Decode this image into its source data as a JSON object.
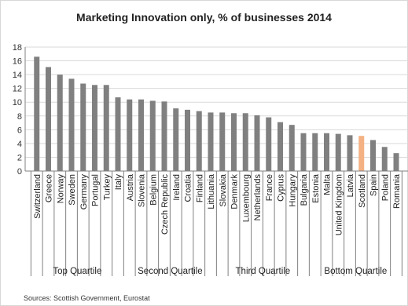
{
  "chart_data": {
    "type": "bar",
    "title": "Marketing Innovation only, % of businesses 2014",
    "xlabel": "",
    "ylabel": "",
    "ylim": [
      0,
      18
    ],
    "yticks": [
      0,
      2,
      4,
      6,
      8,
      10,
      12,
      14,
      16,
      18
    ],
    "grid": true,
    "colors": {
      "bar": "#808080",
      "highlight": "#f4b183",
      "grid": "#d9d9d9",
      "axis": "#808080"
    },
    "highlight_category": "Scotland",
    "categories": [
      "Switzerland",
      "Greece",
      "Norway",
      "Sweden",
      "Germany",
      "Portugal",
      "Turkey",
      "Italy",
      "Austria",
      "Slovenia",
      "Belgium",
      "Czech Republic",
      "Ireland",
      "Croatia",
      "Finland",
      "Lithuania",
      "Slovakia",
      "Denmark",
      "Luxembourg",
      "Netherlands",
      "France",
      "Cyprus",
      "Hungary",
      "Bulgaria",
      "Estonia",
      "Malta",
      "United Kingdom",
      "Latvia",
      "Scotland",
      "Spain",
      "Poland",
      "Romania"
    ],
    "values": [
      16.6,
      15.1,
      14.0,
      13.4,
      12.7,
      12.5,
      12.5,
      10.7,
      10.4,
      10.4,
      10.2,
      10.1,
      9.1,
      8.9,
      8.7,
      8.5,
      8.5,
      8.4,
      8.4,
      8.1,
      7.8,
      7.1,
      6.7,
      5.5,
      5.5,
      5.5,
      5.4,
      5.2,
      5.1,
      4.5,
      3.5,
      2.6
    ],
    "groups": [
      {
        "label": "Top Quartile",
        "start": 0,
        "end": 7
      },
      {
        "label": "Second Quartile",
        "start": 8,
        "end": 15
      },
      {
        "label": "Third Quartile",
        "start": 16,
        "end": 23
      },
      {
        "label": "Bottom Quartile",
        "start": 24,
        "end": 31
      }
    ],
    "source": "Sources: Scottish Government, Eurostat"
  }
}
